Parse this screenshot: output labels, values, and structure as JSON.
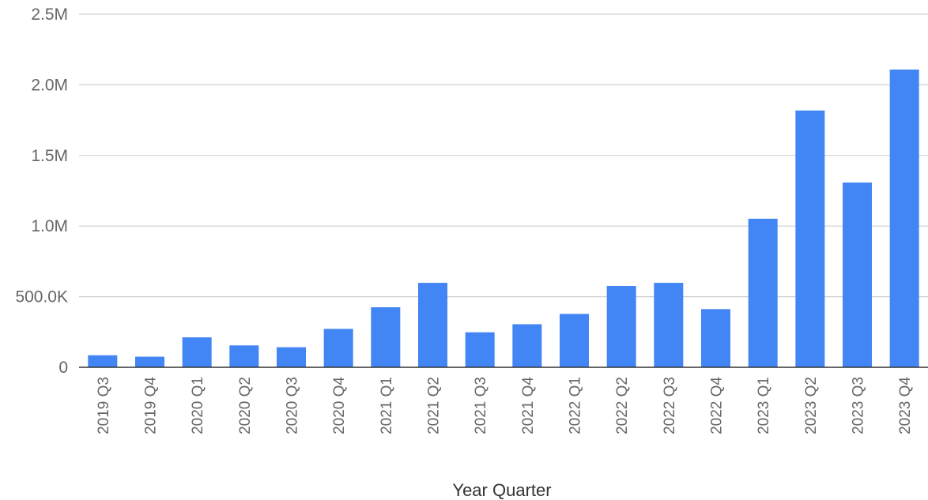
{
  "chart_data": {
    "type": "bar",
    "title": "",
    "xlabel": "Year Quarter",
    "ylabel": "",
    "categories": [
      "2019 Q3",
      "2019 Q4",
      "2020 Q1",
      "2020 Q2",
      "2020 Q3",
      "2020 Q4",
      "2021 Q1",
      "2021 Q2",
      "2021 Q3",
      "2021 Q4",
      "2022 Q1",
      "2022 Q2",
      "2022 Q3",
      "2022 Q4",
      "2023 Q1",
      "2023 Q2",
      "2023 Q3",
      "2023 Q4"
    ],
    "values": [
      85000,
      75000,
      212000,
      155000,
      142000,
      272000,
      425000,
      598000,
      248000,
      305000,
      378000,
      576000,
      598000,
      412000,
      1052000,
      1818000,
      1308000,
      2108000
    ],
    "ylim": [
      0,
      2500000
    ],
    "yticks": [
      0,
      500000,
      1000000,
      1500000,
      2000000,
      2500000
    ],
    "ytick_labels": [
      "0",
      "500.0K",
      "1.0M",
      "1.5M",
      "2.0M",
      "2.5M"
    ],
    "grid": true,
    "bar_color": "#4285f4"
  }
}
